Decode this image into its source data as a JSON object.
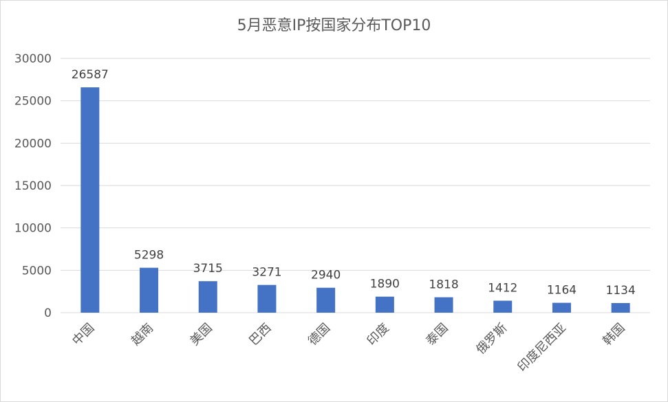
{
  "chart_data": {
    "type": "bar",
    "title": "5月恶意IP按国家分布TOP10",
    "xlabel": "",
    "ylabel": "",
    "categories": [
      "中国",
      "越南",
      "美国",
      "巴西",
      "德国",
      "印度",
      "泰国",
      "俄罗斯",
      "印度尼西亚",
      "韩国"
    ],
    "series": [
      {
        "values": [
          26587,
          5298,
          3715,
          3271,
          2940,
          1890,
          1818,
          1412,
          1164,
          1134
        ]
      }
    ],
    "ylim": [
      0,
      30000
    ],
    "yticks": [
      0,
      5000,
      10000,
      15000,
      20000,
      25000,
      30000
    ],
    "grid": true,
    "legend": "none",
    "bar_color": "#4472C4",
    "grid_color": "#d9d9d9"
  }
}
